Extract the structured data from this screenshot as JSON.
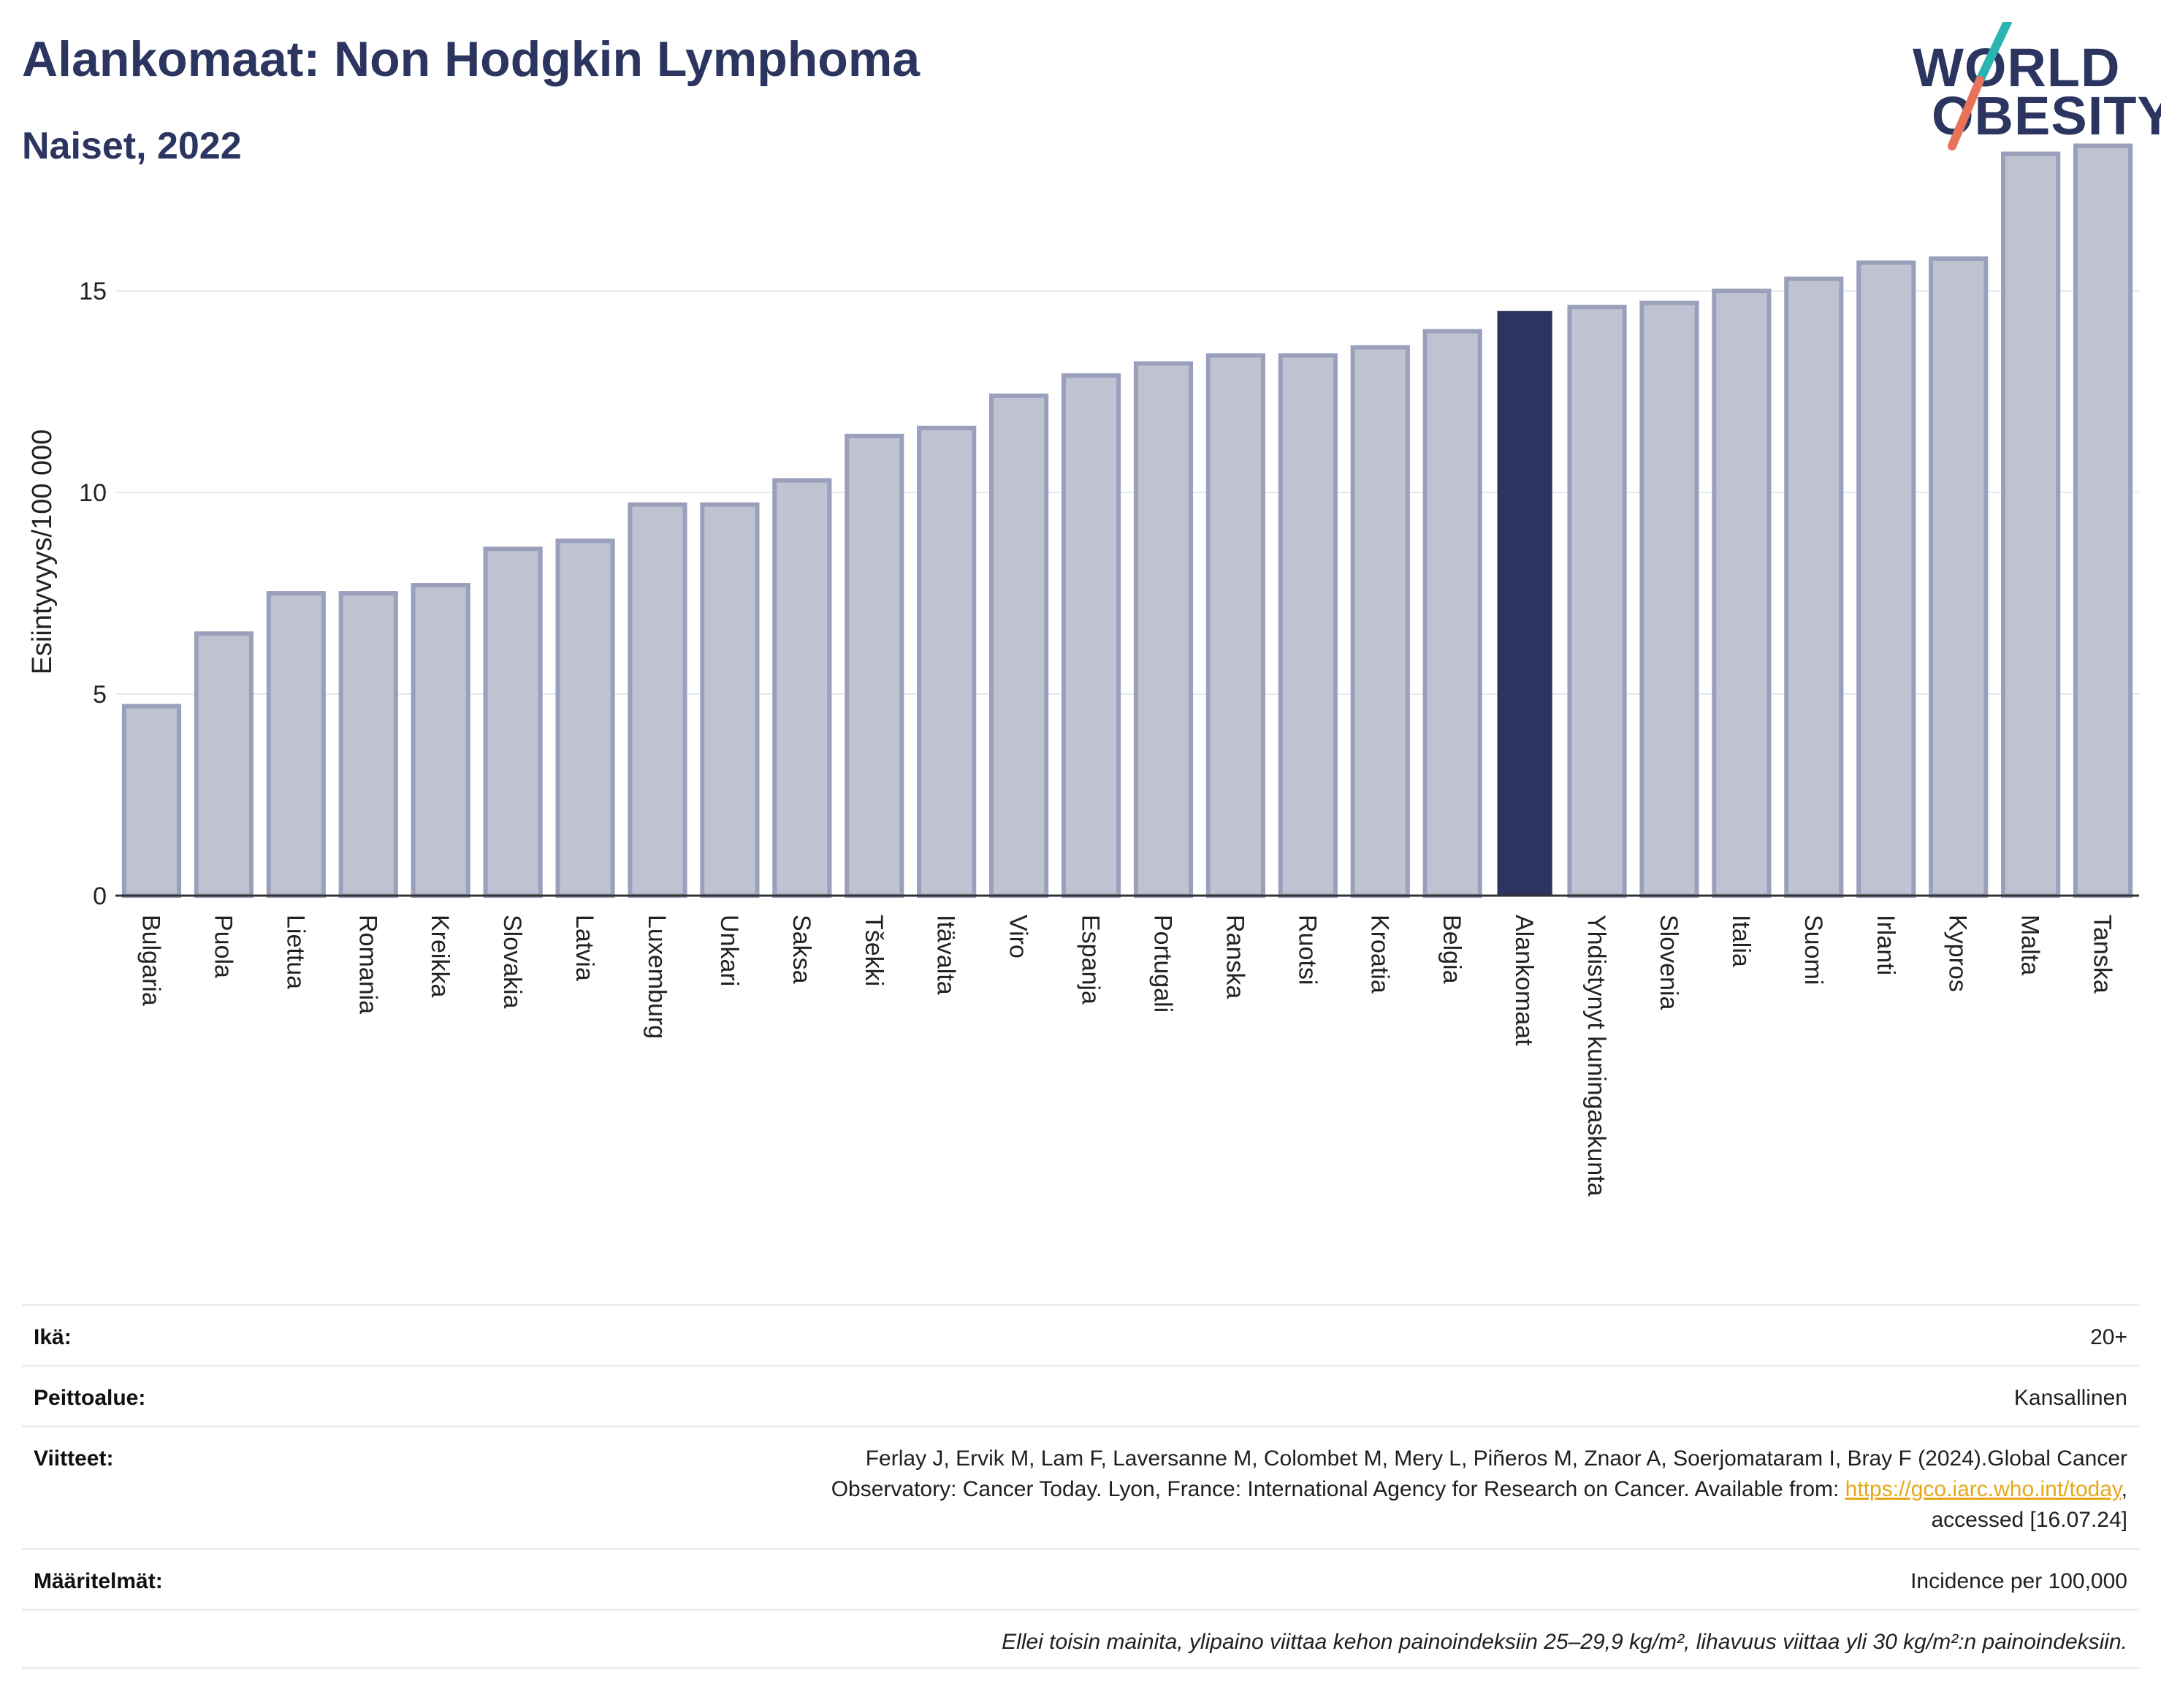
{
  "header": {
    "title": "Alankomaat: Non Hodgkin Lymphoma",
    "subtitle": "Naiset, 2022"
  },
  "logo": {
    "line1": "WORLD",
    "line2": "OBESITY",
    "accent_colors": [
      "#2ab3b1",
      "#e8735a"
    ]
  },
  "chart_data": {
    "type": "bar",
    "ylabel": "Esiintyvyys/100 000",
    "ylim": [
      0,
      18.5
    ],
    "yticks": [
      0,
      5,
      10,
      15
    ],
    "categories": [
      "Bulgaria",
      "Puola",
      "Liettua",
      "Romania",
      "Kreikka",
      "Slovakia",
      "Latvia",
      "Luxemburg",
      "Unkari",
      "Saksa",
      "Tšekki",
      "Itävalta",
      "Viro",
      "Espanja",
      "Portugali",
      "Ranska",
      "Ruotsi",
      "Kroatia",
      "Belgia",
      "Alankomaat",
      "Yhdistynyt kuningaskunta",
      "Slovenia",
      "Italia",
      "Suomi",
      "Irlanti",
      "Kypros",
      "Malta",
      "Tanska"
    ],
    "values": [
      4.7,
      6.5,
      7.5,
      7.5,
      7.7,
      8.6,
      8.8,
      9.7,
      9.7,
      10.3,
      11.4,
      11.6,
      12.4,
      12.9,
      13.2,
      13.4,
      13.4,
      13.6,
      14.0,
      14.5,
      14.6,
      14.7,
      15.0,
      15.3,
      15.7,
      15.8,
      18.4,
      18.6
    ],
    "highlight": "Alankomaat",
    "colors": {
      "bar": "#bfc2d0",
      "bar_edge": "#9aa0bb",
      "highlight": "#2b3560",
      "grid": "#e6e8ef",
      "axis": "#333333"
    },
    "grid": true,
    "legend": "none"
  },
  "info": {
    "age_label": "Ikä:",
    "age_value": "20+",
    "coverage_label": "Peittoalue:",
    "coverage_value": "Kansallinen",
    "refs_label": "Viitteet:",
    "refs_line1": "Ferlay J, Ervik M, Lam F, Laversanne M, Colombet M, Mery L, Piñeros M, Znaor A, Soerjomataram I, Bray F (2024).Global Cancer",
    "refs_line2": "Observatory: Cancer Today. Lyon, France: International Agency for Research on Cancer. Available from: ",
    "refs_link": "https://gco.iarc.who.int/today",
    "refs_line2_end": ",",
    "refs_line3": "accessed [16.07.24]",
    "def_label": "Määritelmät:",
    "def_value": "Incidence per 100,000",
    "note": "Ellei toisin mainita, ylipaino viittaa kehon painoindeksiin 25–29,9 kg/m², lihavuus viittaa yli 30 kg/m²:n painoindeksiin."
  }
}
